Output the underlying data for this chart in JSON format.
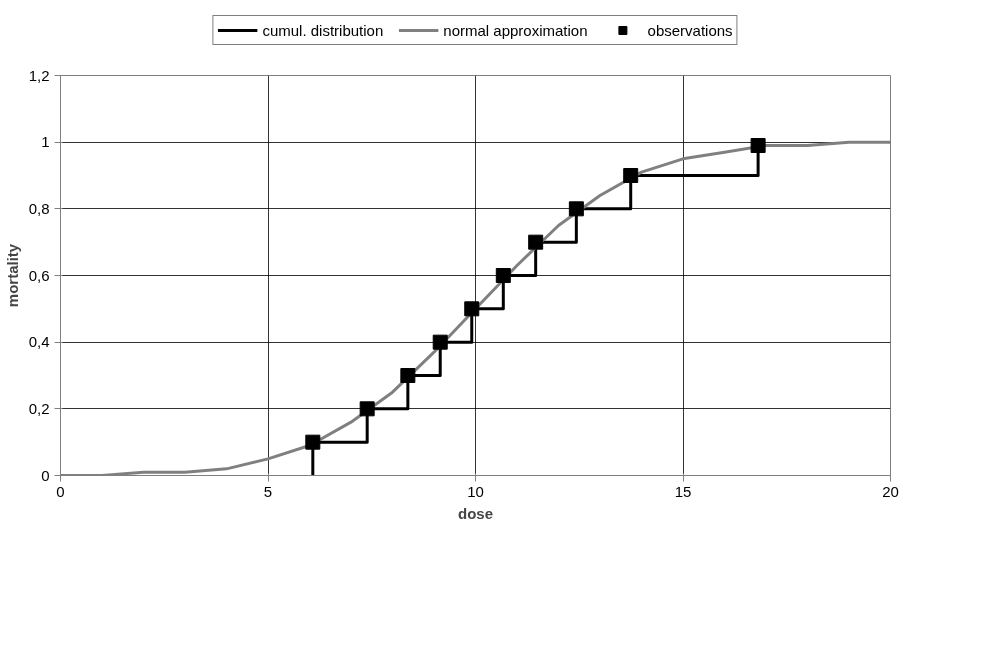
{
  "chart_data": {
    "type": "line",
    "xlabel": "dose",
    "ylabel": "mortality",
    "xlim": [
      0,
      20
    ],
    "ylim": [
      0,
      1.2
    ],
    "xticks": [
      0,
      5,
      10,
      15,
      20
    ],
    "yticks": [
      {
        "value": 0,
        "label": "0"
      },
      {
        "value": 0.2,
        "label": "0,2"
      },
      {
        "value": 0.4,
        "label": "0,4"
      },
      {
        "value": 0.6,
        "label": "0,6"
      },
      {
        "value": 0.8,
        "label": "0,8"
      },
      {
        "value": 1,
        "label": "1"
      },
      {
        "value": 1.2,
        "label": "1,2"
      }
    ],
    "grid": true,
    "legend": "top",
    "series": [
      {
        "name": "cumul. distribution",
        "type": "step",
        "color": "#000000",
        "marker": "none",
        "x": [
          6.08,
          6.08,
          7.39,
          8.37,
          9.15,
          9.91,
          10.67,
          11.45,
          12.43,
          13.74,
          16.81
        ],
        "values": [
          0,
          0.1,
          0.2,
          0.3,
          0.4,
          0.5,
          0.6,
          0.7,
          0.8,
          0.9,
          0.99
        ]
      },
      {
        "name": "normal approximation",
        "color": "#808080",
        "marker": "none",
        "x": [
          0,
          1,
          2,
          3,
          4,
          5,
          6,
          7,
          8,
          9,
          10,
          11,
          12,
          13,
          14,
          15,
          16,
          17,
          18,
          19,
          20
        ],
        "values": [
          0,
          0,
          0.01,
          0.01,
          0.02,
          0.05,
          0.09,
          0.16,
          0.25,
          0.37,
          0.5,
          0.63,
          0.75,
          0.84,
          0.91,
          0.95,
          0.97,
          0.99,
          0.99,
          1,
          1
        ]
      },
      {
        "name": "observations",
        "type": "scatter",
        "color": "#000000",
        "marker": "square",
        "x": [
          6.08,
          7.39,
          8.37,
          9.15,
          9.91,
          10.67,
          11.45,
          12.43,
          13.74,
          16.81
        ],
        "values": [
          0.1,
          0.2,
          0.3,
          0.4,
          0.5,
          0.6,
          0.7,
          0.8,
          0.9,
          0.99
        ]
      }
    ]
  }
}
